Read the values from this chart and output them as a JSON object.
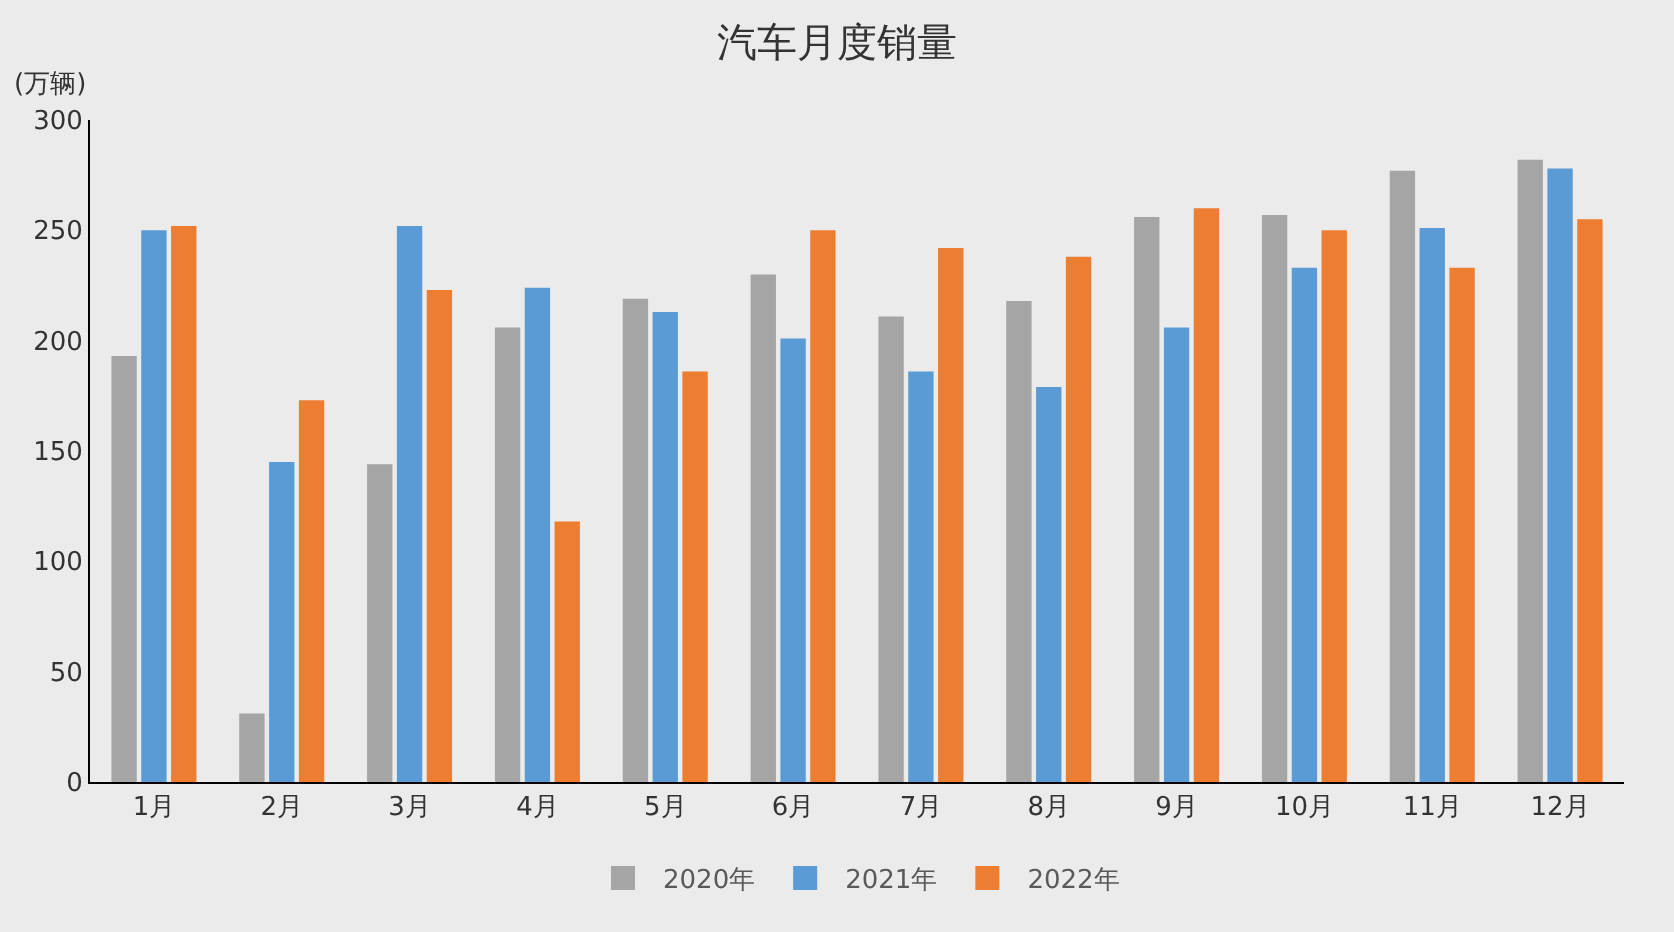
{
  "chart_data": {
    "type": "bar",
    "title": "汽车月度销量",
    "ylabel": "(万辆)",
    "categories": [
      "1月",
      "2月",
      "3月",
      "4月",
      "5月",
      "6月",
      "7月",
      "8月",
      "9月",
      "10月",
      "11月",
      "12月"
    ],
    "series": [
      {
        "name": "2020年",
        "color": "#a5a5a5",
        "values": [
          193,
          31,
          144,
          206,
          219,
          230,
          211,
          218,
          256,
          257,
          277,
          282
        ]
      },
      {
        "name": "2021年",
        "color": "#5b9bd5",
        "values": [
          250,
          145,
          252,
          224,
          213,
          201,
          186,
          179,
          206,
          233,
          251,
          278
        ]
      },
      {
        "name": "2022年",
        "color": "#ed7d31",
        "values": [
          252,
          173,
          223,
          118,
          186,
          250,
          242,
          238,
          260,
          250,
          233,
          255
        ]
      }
    ],
    "ylim": [
      0,
      300
    ],
    "yticks": [
      0,
      50,
      100,
      150,
      200,
      250,
      300
    ],
    "grid": false,
    "legend": "bottom"
  }
}
